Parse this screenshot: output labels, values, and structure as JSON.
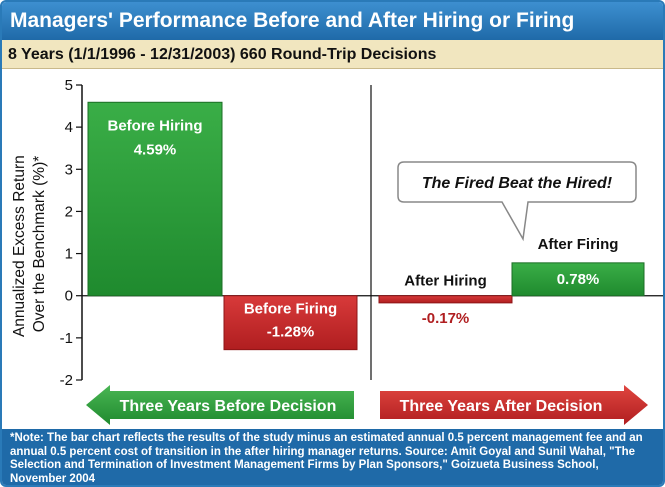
{
  "header": {
    "title": "Managers' Performance Before and After Hiring or Firing",
    "subtitle": "8 Years (1/1/1996 - 12/31/2003) 660 Round-Trip Decisions"
  },
  "callout": {
    "text": "The Fired Beat the Hired!"
  },
  "arrows": {
    "left_label": "Three Years Before Decision",
    "right_label": "Three Years After Decision"
  },
  "footnote": "*Note: The bar chart reflects the results of the study minus an estimated annual 0.5 percent management fee and an annual 0.5 percent cost of transition in the after hiring manager returns. Source: Amit Goyal and Sunil Wahal, \"The Selection and Termination of Investment Management Firms by Plan Sponsors,\" Goizueta Business School, November 2004",
  "colors": {
    "title_bg": "#1f6aa8",
    "subtitle_bg": "#f1e6bf",
    "green": "#2e9a3a",
    "red": "#c8282a"
  },
  "chart_data": {
    "type": "bar",
    "title": "Managers' Performance Before and After Hiring or Firing",
    "ylabel": "Annualized Excess Return Over the Benchmark (%)*",
    "ylabel_lines": [
      "Annualized Excess Return",
      "Over the Benchmark (%)*"
    ],
    "ylim": [
      -2,
      5
    ],
    "yticks": [
      -2,
      -1,
      0,
      1,
      2,
      3,
      4,
      5
    ],
    "categories": [
      "Before Hiring",
      "Before Firing",
      "After Hiring",
      "After Firing"
    ],
    "values": [
      4.59,
      -1.28,
      -0.17,
      0.78
    ],
    "value_labels": [
      "4.59%",
      "-1.28%",
      "-0.17%",
      "0.78%"
    ],
    "groups": [
      "Three Years Before Decision",
      "Three Years After Decision"
    ]
  }
}
